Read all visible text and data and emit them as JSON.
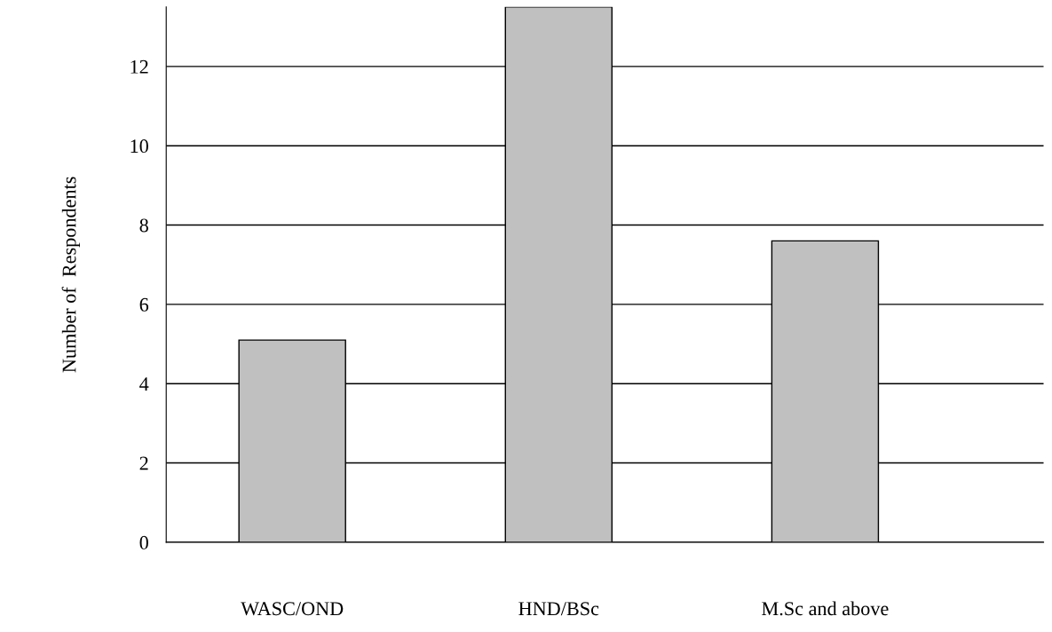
{
  "chart_data": {
    "type": "bar",
    "ylabel": "Number of  Respondents",
    "categories": [
      "WASC/OND",
      "HND/BSc",
      "M.Sc and above"
    ],
    "values": [
      5.1,
      13.5,
      7.6
    ],
    "color": "#c0c0c0",
    "ylim": [
      0,
      13.5
    ],
    "yticks": [
      0,
      2,
      4,
      6,
      8,
      10,
      12
    ],
    "grid": "y"
  }
}
